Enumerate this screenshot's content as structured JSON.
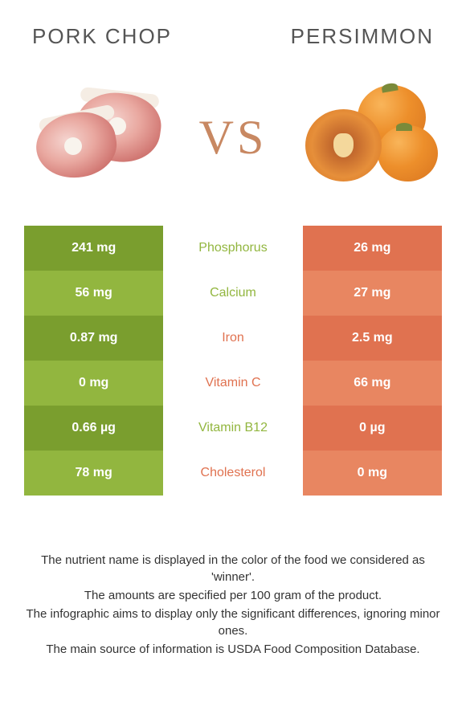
{
  "header": {
    "left_title": "Pork chop",
    "right_title": "Persimmon"
  },
  "vs_label": "VS",
  "colors": {
    "left_a": "#7a9e2e",
    "left_b": "#92b63f",
    "right_a": "#e07250",
    "right_b": "#e88661",
    "center_left_text": "#92b63f",
    "center_right_text": "#e07250"
  },
  "rows": [
    {
      "left": "241 mg",
      "label": "Phosphorus",
      "right": "26 mg",
      "winner": "left"
    },
    {
      "left": "56 mg",
      "label": "Calcium",
      "right": "27 mg",
      "winner": "left"
    },
    {
      "left": "0.87 mg",
      "label": "Iron",
      "right": "2.5 mg",
      "winner": "right"
    },
    {
      "left": "0 mg",
      "label": "Vitamin C",
      "right": "66 mg",
      "winner": "right"
    },
    {
      "left": "0.66 µg",
      "label": "Vitamin B12",
      "right": "0 µg",
      "winner": "left"
    },
    {
      "left": "78 mg",
      "label": "Cholesterol",
      "right": "0 mg",
      "winner": "right"
    }
  ],
  "footnotes": [
    "The nutrient name is displayed in the color of the food we considered as 'winner'.",
    "The amounts are specified per 100 gram of the product.",
    "The infographic aims to display only the significant differences, ignoring minor ones.",
    "The main source of information is USDA Food Composition Database."
  ]
}
